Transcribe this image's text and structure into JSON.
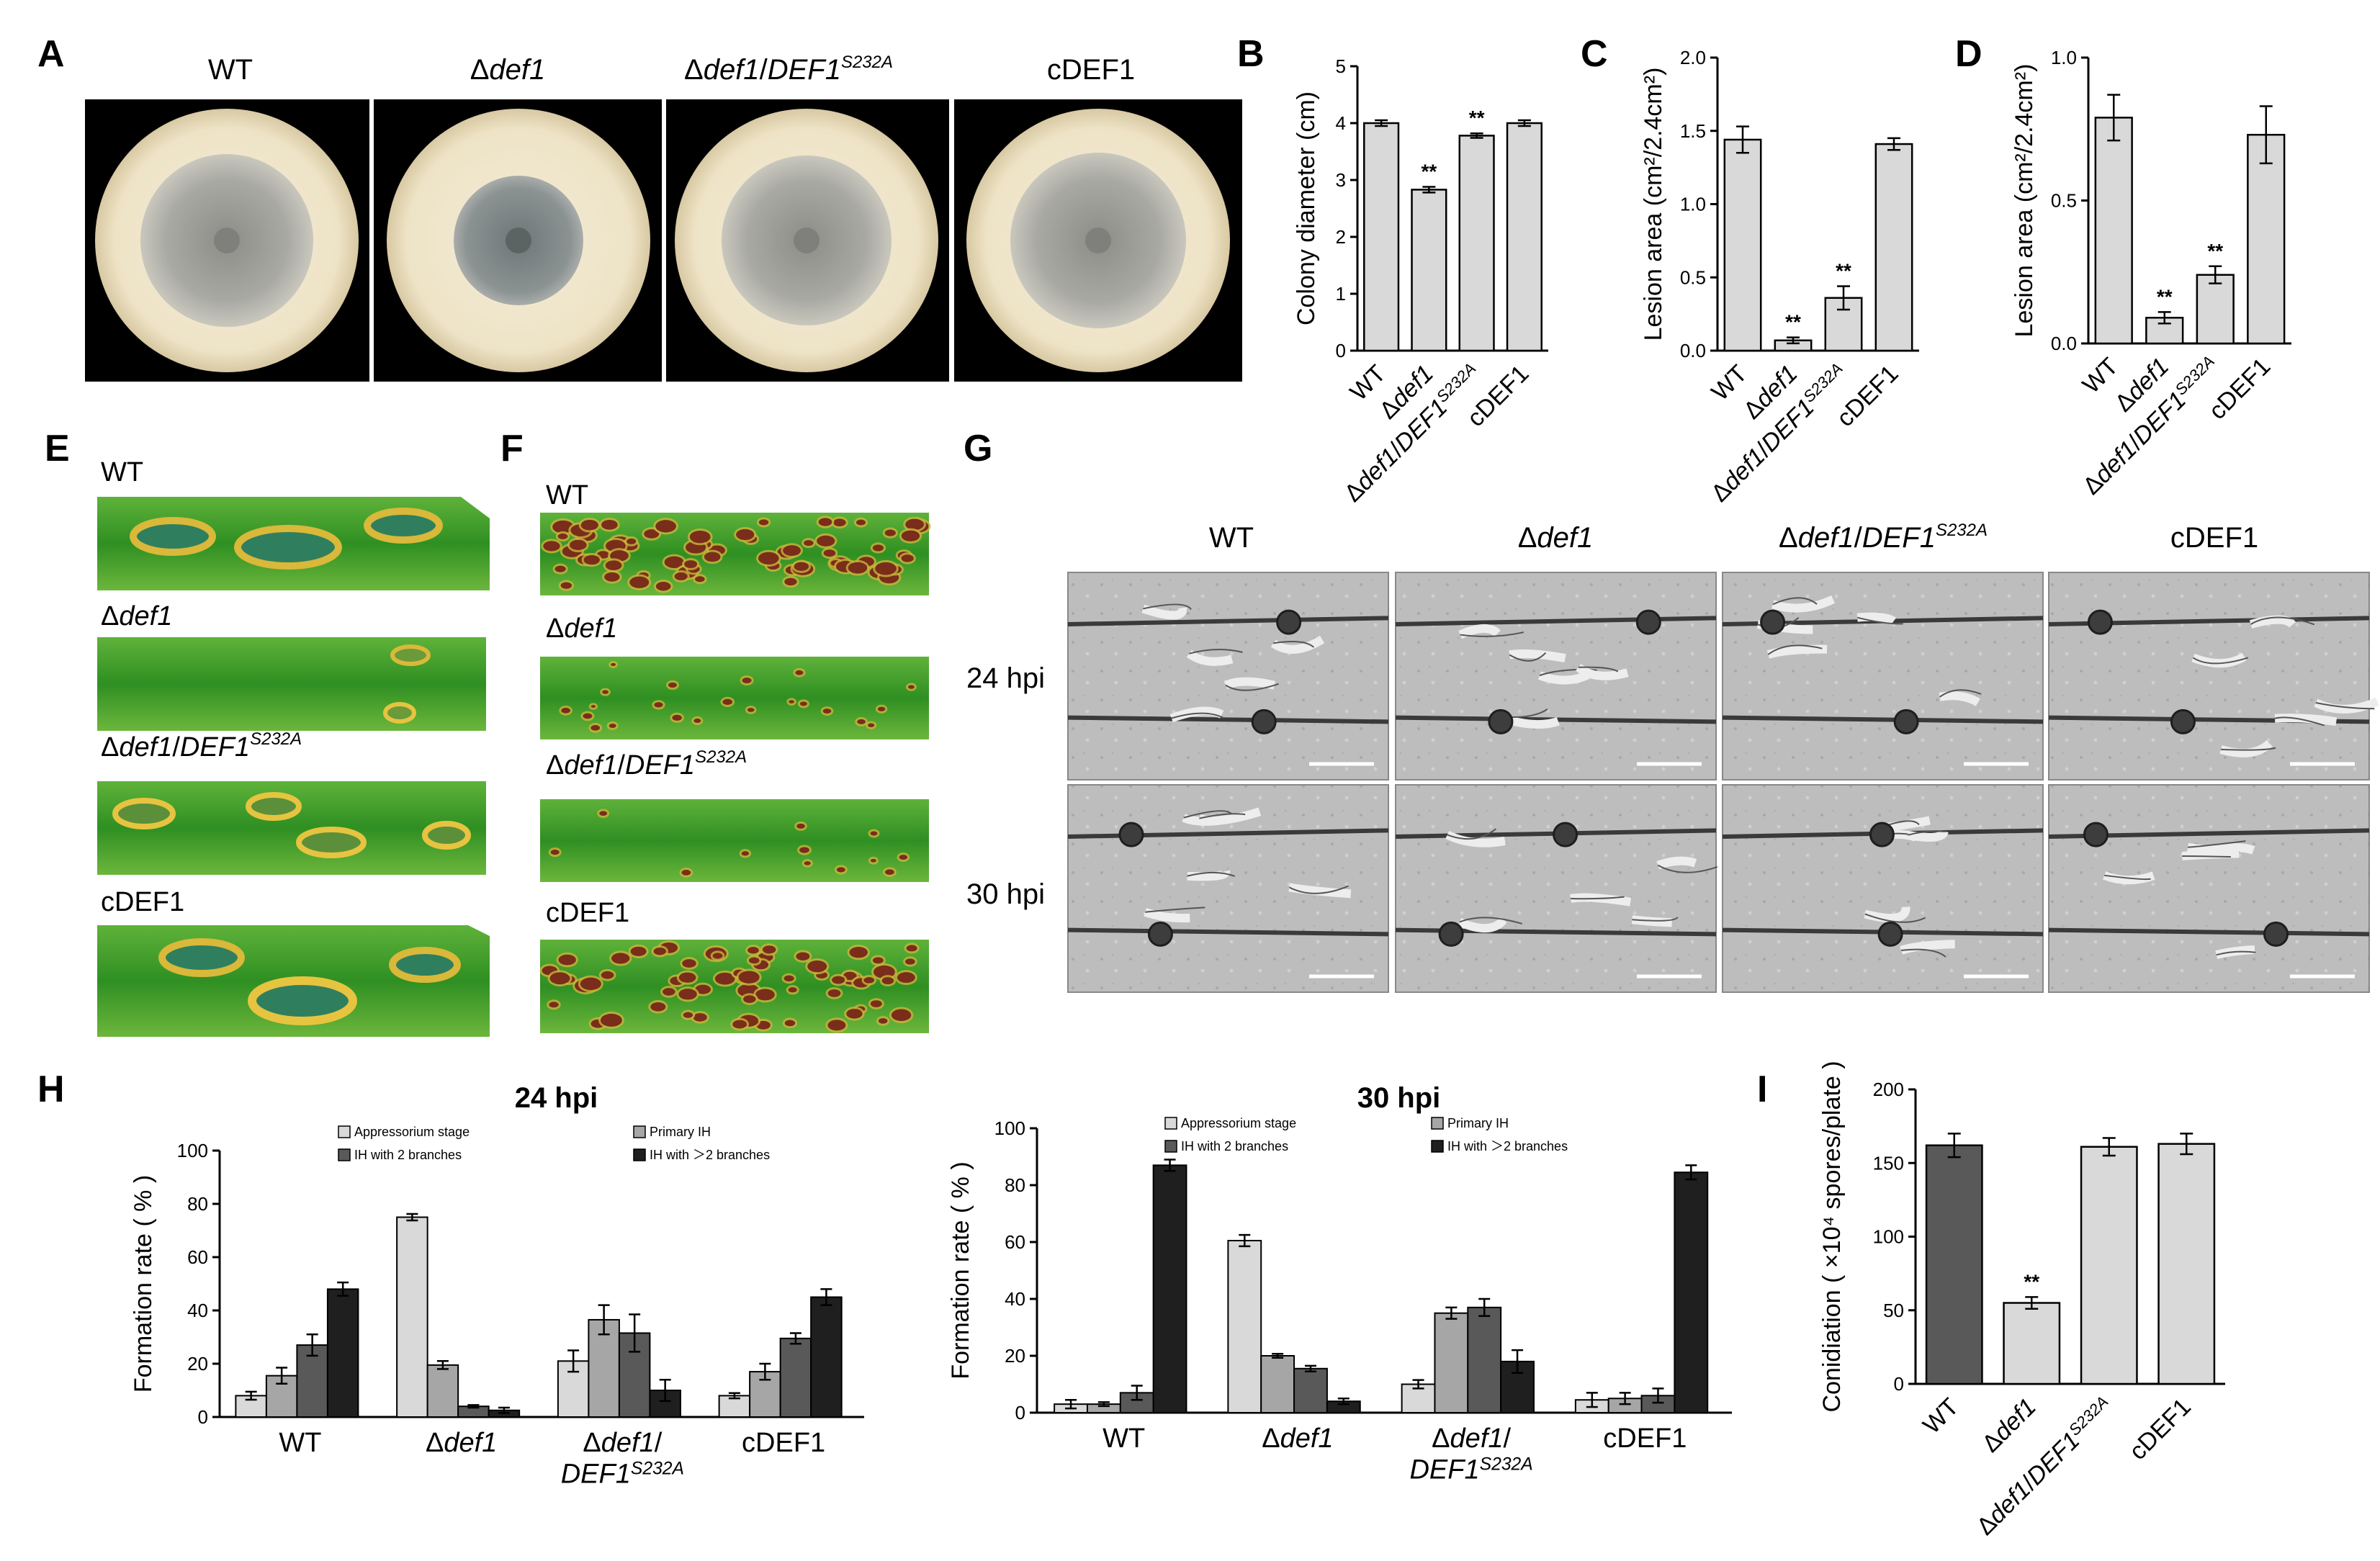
{
  "panel_labels": [
    "A",
    "B",
    "C",
    "D",
    "E",
    "F",
    "G",
    "H",
    "I"
  ],
  "strains": [
    "WT",
    "Δdef1",
    "Δdef1/DEF1S232A",
    "cDEF1"
  ],
  "strain_parts": {
    "wt": "WT",
    "delta": "Δ",
    "def1": "def1",
    "slash": "/",
    "DEF1": "DEF1",
    "sup": "S232A",
    "c": "cDEF1"
  },
  "colors": {
    "bar_light": "#d9d9d9",
    "bar_mid": "#a6a6a6",
    "bar_dark": "#595959",
    "bar_black": "#1f1f1f",
    "plate_outer": "#efe6cf",
    "colony": "#9a9a96",
    "leaf_green": "#3f9b2a",
    "lesion": "#7a2d1a"
  },
  "panel_G": {
    "columns": [
      "WT",
      "Δdef1",
      "Δdef1/DEF1S232A",
      "cDEF1"
    ],
    "rows": [
      "24 hpi",
      "30 hpi"
    ]
  },
  "panel_H": {
    "legend": [
      "Appressorium stage",
      "Primary IH",
      "IH with 2 branches",
      "IH with ＞2 branches"
    ]
  },
  "chart_data": [
    {
      "id": "B",
      "type": "bar",
      "categories": [
        "WT",
        "Δdef1",
        "Δdef1/DEF1S232A",
        "cDEF1"
      ],
      "values": [
        4.0,
        2.83,
        3.78,
        4.0
      ],
      "errors": [
        0.05,
        0.05,
        0.04,
        0.05
      ],
      "significance": [
        "",
        "**",
        "**",
        ""
      ],
      "ylabel": "Colony diameter (cm)",
      "ylim": [
        0,
        5
      ],
      "yticks": [
        "0",
        "1",
        "2",
        "3",
        "4",
        "5"
      ]
    },
    {
      "id": "C",
      "type": "bar",
      "categories": [
        "WT",
        "Δdef1",
        "Δdef1/DEF1S232A",
        "cDEF1"
      ],
      "values": [
        1.44,
        0.07,
        0.36,
        1.41
      ],
      "errors": [
        0.09,
        0.02,
        0.08,
        0.04
      ],
      "significance": [
        "",
        "**",
        "**",
        ""
      ],
      "ylabel": "Lesion area (cm²/2.4cm²)",
      "ylim": [
        0,
        2.0
      ],
      "yticks": [
        "0.0",
        "0.5",
        "1.0",
        "1.5",
        "2.0"
      ]
    },
    {
      "id": "D",
      "type": "bar",
      "categories": [
        "WT",
        "Δdef1",
        "Δdef1/DEF1S232A",
        "cDEF1"
      ],
      "values": [
        0.79,
        0.09,
        0.24,
        0.73
      ],
      "errors": [
        0.08,
        0.02,
        0.03,
        0.1
      ],
      "significance": [
        "",
        "**",
        "**",
        ""
      ],
      "ylabel": "Lesion area (cm²/2.4cm²)",
      "ylim": [
        0,
        1.0
      ],
      "yticks": [
        "0.0",
        "0.5",
        "1.0"
      ]
    },
    {
      "id": "H1",
      "type": "bar",
      "title": "24 hpi",
      "categories": [
        "WT",
        "Δdef1",
        "Δdef1/DEF1S232A",
        "cDEF1"
      ],
      "series": [
        {
          "name": "Appressorium stage",
          "values": [
            8,
            75,
            21,
            8
          ],
          "errors": [
            1.5,
            1.2,
            4,
            1
          ]
        },
        {
          "name": "Primary IH",
          "values": [
            15.5,
            19.5,
            36.5,
            17
          ],
          "errors": [
            3,
            1.5,
            5.5,
            3
          ]
        },
        {
          "name": "IH with 2 branches",
          "values": [
            27,
            4,
            31.5,
            29.5
          ],
          "errors": [
            4,
            0.5,
            7,
            2
          ]
        },
        {
          "name": "IH with ＞2 branches",
          "values": [
            48,
            2.5,
            10,
            45
          ],
          "errors": [
            2.5,
            1,
            4,
            3
          ]
        }
      ],
      "ylabel": "Formation rate ( % )",
      "ylim": [
        0,
        100
      ],
      "yticks": [
        "0",
        "20",
        "40",
        "60",
        "80",
        "100"
      ]
    },
    {
      "id": "H2",
      "type": "bar",
      "title": "30 hpi",
      "categories": [
        "WT",
        "Δdef1",
        "Δdef1/DEF1S232A",
        "cDEF1"
      ],
      "series": [
        {
          "name": "Appressorium stage",
          "values": [
            3,
            60.5,
            10,
            4.5
          ],
          "errors": [
            1.5,
            2,
            1.5,
            2.5
          ]
        },
        {
          "name": "Primary IH",
          "values": [
            3,
            20,
            35,
            5
          ],
          "errors": [
            0.7,
            0.7,
            2,
            2
          ]
        },
        {
          "name": "IH with 2 branches",
          "values": [
            7,
            15.5,
            37,
            6
          ],
          "errors": [
            2.5,
            1,
            3,
            2.5
          ]
        },
        {
          "name": "IH with ＞2 branches",
          "values": [
            87,
            4,
            18,
            84.5
          ],
          "errors": [
            2,
            1,
            4,
            2.5
          ]
        }
      ],
      "ylabel": "Formation rate ( % )",
      "ylim": [
        0,
        100
      ],
      "yticks": [
        "0",
        "20",
        "40",
        "60",
        "80",
        "100"
      ]
    },
    {
      "id": "I",
      "type": "bar",
      "categories": [
        "WT",
        "Δdef1",
        "Δdef1/DEF1S232A",
        "cDEF1"
      ],
      "values": [
        162,
        55,
        161,
        163
      ],
      "errors": [
        8,
        4,
        6,
        7
      ],
      "significance": [
        "",
        "**",
        "",
        ""
      ],
      "ylabel": "Conidiation ( ×10⁴ spores/plate )",
      "ylim": [
        0,
        200
      ],
      "yticks": [
        "0",
        "50",
        "100",
        "150",
        "200"
      ]
    }
  ]
}
